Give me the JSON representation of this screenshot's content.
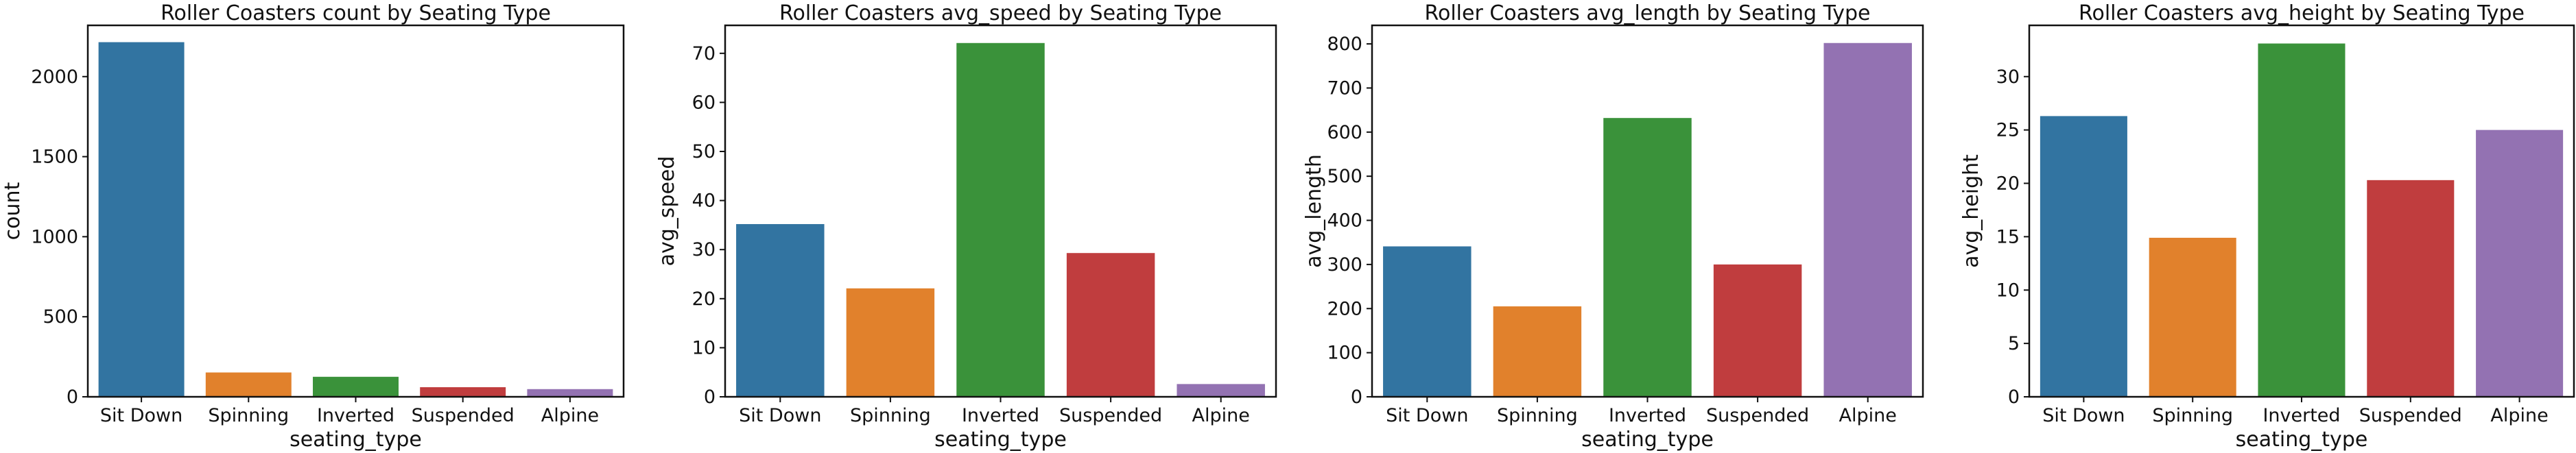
{
  "chart_data": [
    {
      "type": "bar",
      "title": "Roller Coasters count by Seating Type",
      "xlabel": "seating_type",
      "ylabel": "count",
      "categories": [
        "Sit Down",
        "Spinning",
        "Inverted",
        "Suspended",
        "Alpine"
      ],
      "values": [
        2215,
        152,
        125,
        60,
        48
      ],
      "ylim": [
        0,
        2320
      ],
      "yticks": [
        0,
        500,
        1000,
        1500,
        2000
      ],
      "colors": [
        "#3274a1",
        "#e1812c",
        "#3a923a",
        "#c03d3e",
        "#9372b2"
      ],
      "grid": false,
      "legend": "none"
    },
    {
      "type": "bar",
      "title": "Roller Coasters avg_speed by Seating Type",
      "xlabel": "seating_type",
      "ylabel": "avg_speed",
      "categories": [
        "Sit Down",
        "Spinning",
        "Inverted",
        "Suspended",
        "Alpine"
      ],
      "values": [
        35.2,
        22.1,
        72.1,
        29.3,
        2.6
      ],
      "ylim": [
        0,
        75.7
      ],
      "yticks": [
        0,
        10,
        20,
        30,
        40,
        50,
        60,
        70
      ],
      "colors": [
        "#3274a1",
        "#e1812c",
        "#3a923a",
        "#c03d3e",
        "#9372b2"
      ],
      "grid": false,
      "legend": "none"
    },
    {
      "type": "bar",
      "title": "Roller Coasters avg_length by Seating Type",
      "xlabel": "seating_type",
      "ylabel": "avg_length",
      "categories": [
        "Sit Down",
        "Spinning",
        "Inverted",
        "Suspended",
        "Alpine"
      ],
      "values": [
        341,
        205,
        632,
        300,
        802
      ],
      "ylim": [
        0,
        842
      ],
      "yticks": [
        0,
        100,
        200,
        300,
        400,
        500,
        600,
        700,
        800
      ],
      "colors": [
        "#3274a1",
        "#e1812c",
        "#3a923a",
        "#c03d3e",
        "#9372b2"
      ],
      "grid": false,
      "legend": "none"
    },
    {
      "type": "bar",
      "title": "Roller Coasters avg_height by Seating Type",
      "xlabel": "seating_type",
      "ylabel": "avg_height",
      "categories": [
        "Sit Down",
        "Spinning",
        "Inverted",
        "Suspended",
        "Alpine"
      ],
      "values": [
        26.3,
        14.9,
        33.1,
        20.3,
        25.0
      ],
      "ylim": [
        0,
        34.8
      ],
      "yticks": [
        0,
        5,
        10,
        15,
        20,
        25,
        30
      ],
      "colors": [
        "#3274a1",
        "#e1812c",
        "#3a923a",
        "#c03d3e",
        "#9372b2"
      ],
      "grid": false,
      "legend": "none"
    }
  ]
}
